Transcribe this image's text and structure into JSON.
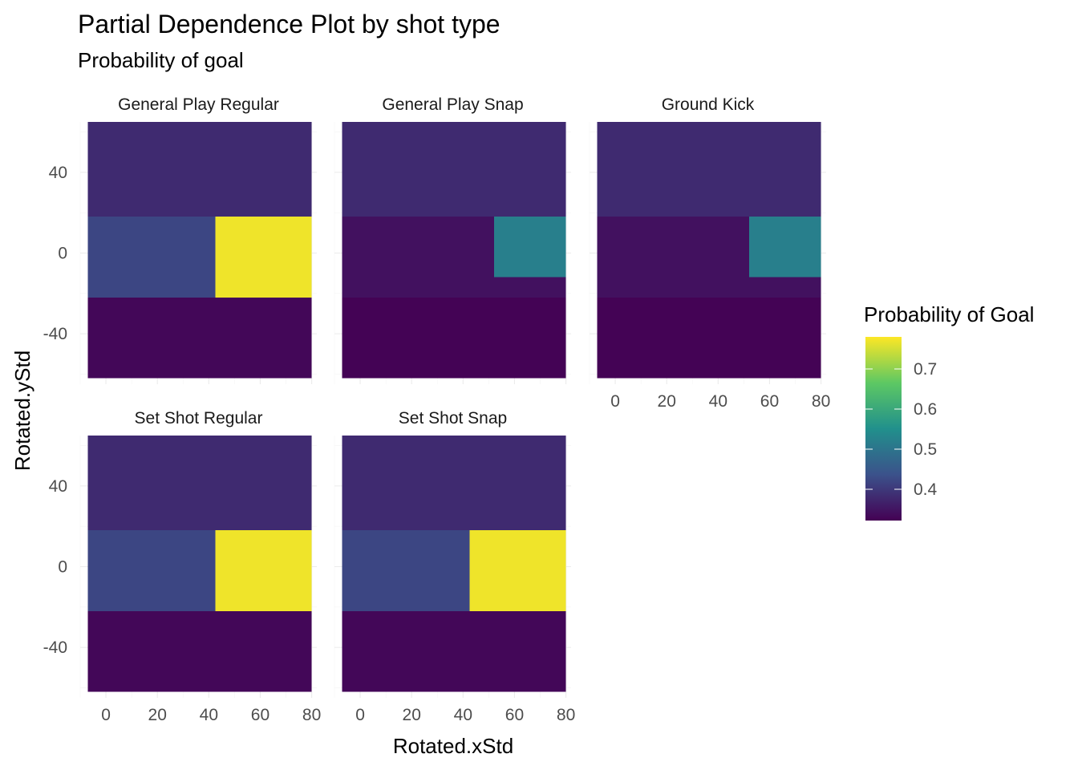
{
  "chart_data": {
    "type": "heatmap",
    "title": "Partial Dependence Plot by shot type",
    "subtitle": "Probability of goal",
    "xlabel": "Rotated.xStd",
    "ylabel": "Rotated.yStd",
    "xlim": [
      -10,
      82
    ],
    "ylim": [
      -65,
      65
    ],
    "x_ticks": [
      0,
      20,
      40,
      60,
      80
    ],
    "y_ticks": [
      -40,
      0,
      40
    ],
    "grid": true,
    "legend": {
      "title": "Probability of Goal",
      "placement": "right",
      "ticks": [
        0.4,
        0.5,
        0.6,
        0.7
      ],
      "range": [
        0.322,
        0.78
      ],
      "colors": [
        "#440154",
        "#3b528b",
        "#21908c",
        "#5dc863",
        "#fde725"
      ]
    },
    "facets": [
      {
        "name": "General Play Regular",
        "tiles": [
          {
            "x": [
              -7,
              80
            ],
            "y": [
              -62,
              -22
            ],
            "value": 0.33
          },
          {
            "x": [
              -7,
              42.5
            ],
            "y": [
              -22,
              18
            ],
            "value": 0.42
          },
          {
            "x": [
              42.5,
              80
            ],
            "y": [
              -22,
              18
            ],
            "value": 0.77
          },
          {
            "x": [
              -7,
              80
            ],
            "y": [
              18,
              65
            ],
            "value": 0.38
          }
        ]
      },
      {
        "name": "General Play Snap",
        "tiles": [
          {
            "x": [
              -7,
              80
            ],
            "y": [
              -62,
              -22
            ],
            "value": 0.325
          },
          {
            "x": [
              -7,
              52
            ],
            "y": [
              -22,
              18
            ],
            "value": 0.345
          },
          {
            "x": [
              52,
              80
            ],
            "y": [
              -12,
              18
            ],
            "value": 0.52
          },
          {
            "x": [
              52,
              80
            ],
            "y": [
              -22,
              -12
            ],
            "value": 0.345
          },
          {
            "x": [
              -7,
              80
            ],
            "y": [
              18,
              65
            ],
            "value": 0.38
          }
        ]
      },
      {
        "name": "Ground Kick",
        "tiles": [
          {
            "x": [
              -7,
              80
            ],
            "y": [
              -62,
              -22
            ],
            "value": 0.325
          },
          {
            "x": [
              -7,
              52
            ],
            "y": [
              -22,
              18
            ],
            "value": 0.345
          },
          {
            "x": [
              52,
              80
            ],
            "y": [
              -12,
              18
            ],
            "value": 0.52
          },
          {
            "x": [
              52,
              80
            ],
            "y": [
              -22,
              -12
            ],
            "value": 0.345
          },
          {
            "x": [
              -7,
              80
            ],
            "y": [
              18,
              65
            ],
            "value": 0.38
          }
        ]
      },
      {
        "name": "Set Shot Regular",
        "tiles": [
          {
            "x": [
              -7,
              80
            ],
            "y": [
              -62,
              -22
            ],
            "value": 0.33
          },
          {
            "x": [
              -7,
              42.5
            ],
            "y": [
              -22,
              18
            ],
            "value": 0.42
          },
          {
            "x": [
              42.5,
              80
            ],
            "y": [
              -22,
              18
            ],
            "value": 0.77
          },
          {
            "x": [
              -7,
              80
            ],
            "y": [
              18,
              65
            ],
            "value": 0.38
          }
        ]
      },
      {
        "name": "Set Shot Snap",
        "tiles": [
          {
            "x": [
              -7,
              80
            ],
            "y": [
              -62,
              -22
            ],
            "value": 0.33
          },
          {
            "x": [
              -7,
              42.5
            ],
            "y": [
              -22,
              18
            ],
            "value": 0.42
          },
          {
            "x": [
              42.5,
              80
            ],
            "y": [
              -22,
              18
            ],
            "value": 0.77
          },
          {
            "x": [
              -7,
              80
            ],
            "y": [
              18,
              65
            ],
            "value": 0.38
          }
        ]
      }
    ]
  }
}
